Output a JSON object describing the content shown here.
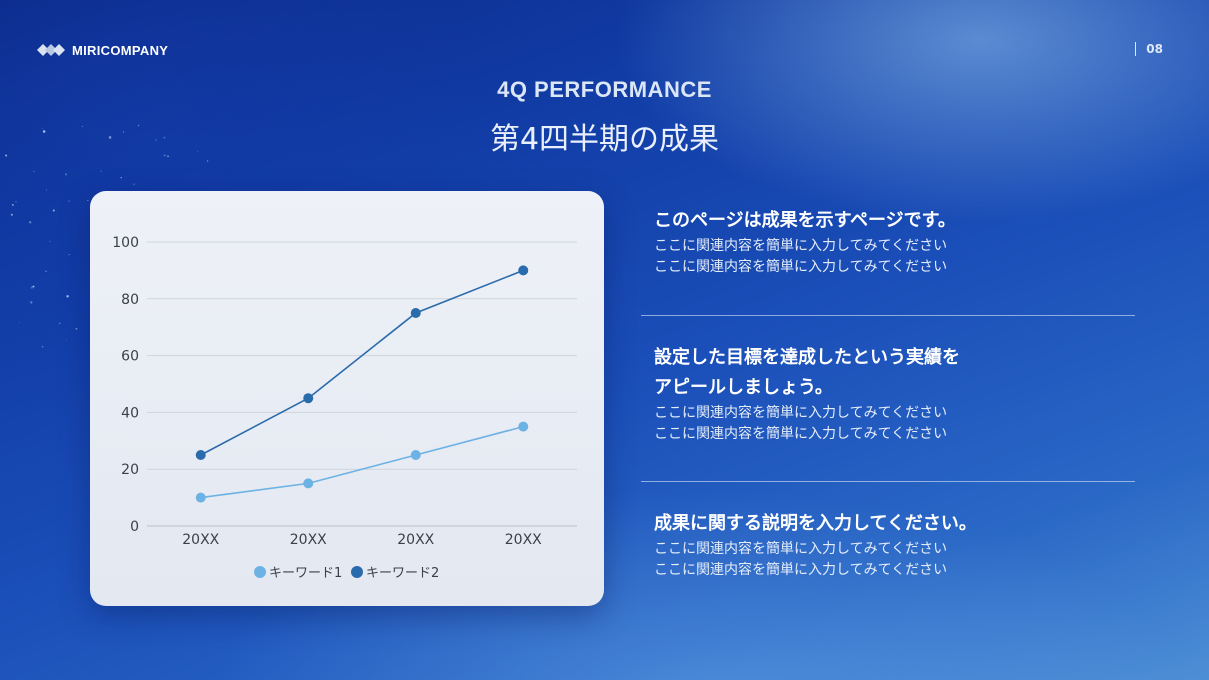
{
  "brand": {
    "name": "MIRICOMPANY",
    "icon": "diamond-logo-icon"
  },
  "page_number": "08",
  "header": {
    "eyebrow": "4Q PERFORMANCE",
    "title": "第4四半期の成果"
  },
  "chart_data": {
    "type": "line",
    "categories": [
      "20XX",
      "20XX",
      "20XX",
      "20XX"
    ],
    "series": [
      {
        "name": "キーワード1",
        "values": [
          10,
          15,
          25,
          35
        ],
        "color": "#6cb2e4"
      },
      {
        "name": "キーワード2",
        "values": [
          25,
          45,
          75,
          90
        ],
        "color": "#2a6bab"
      }
    ],
    "ylim": [
      0,
      100
    ],
    "yticks": [
      "0",
      "20",
      "40",
      "60",
      "80",
      "100"
    ],
    "grid": true,
    "legend": "bottom-center",
    "title": "",
    "xlabel": "",
    "ylabel": ""
  },
  "sections": [
    {
      "heading_lines": [
        "このページは成果を示すページです。"
      ],
      "body_lines": [
        "ここに関連内容を簡単に入力してみてください",
        "ここに関連内容を簡単に入力してみてください"
      ]
    },
    {
      "heading_lines": [
        "設定した目標を達成したという実績を",
        "アピールしましょう。"
      ],
      "body_lines": [
        "ここに関連内容を簡単に入力してみてください",
        "ここに関連内容を簡単に入力してみてください"
      ]
    },
    {
      "heading_lines": [
        "成果に関する説明を入力してください。"
      ],
      "body_lines": [
        "ここに関連内容を簡単に入力してみてください",
        "ここに関連内容を簡単に入力してみてください"
      ]
    }
  ]
}
